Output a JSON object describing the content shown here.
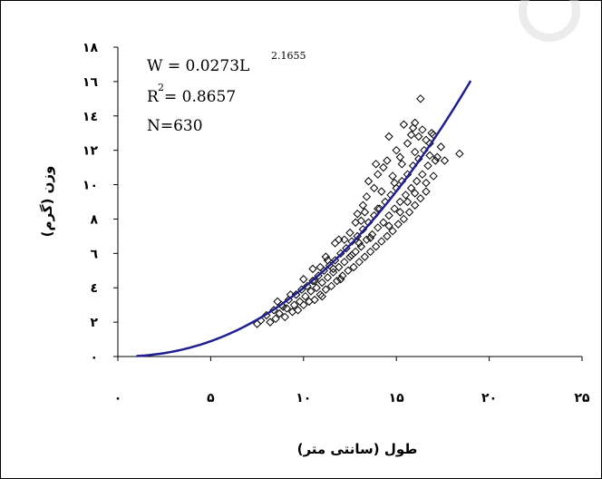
{
  "chart_data": {
    "type": "scatter",
    "xlabel": "طول (سانتی متر)",
    "ylabel": "وزن (گرم)",
    "xlim": [
      0,
      25
    ],
    "ylim": [
      0,
      18
    ],
    "x_ticks": [
      "۰",
      "۵",
      "۱۰",
      "۱۵",
      "۲۰",
      "۲۵"
    ],
    "y_ticks": [
      "۰",
      "۲",
      "٤",
      "٦",
      "۸",
      "۱۰",
      "۱۲",
      "۱٤",
      "۱٦",
      "۱۸"
    ],
    "annotation": {
      "equation_base": "W = 0.0273L",
      "equation_exponent": "2.1655",
      "r2_base": "R",
      "r2_exponent": "2",
      "r2_value": " = 0.8657",
      "n": "N=630"
    },
    "trendline": {
      "type": "power",
      "a": 0.0273,
      "b": 2.1655,
      "x_range": [
        1,
        19
      ],
      "color": "#1f1f8f"
    },
    "marker": "diamond",
    "marker_color": "#000000",
    "points": [
      [
        7.5,
        1.9
      ],
      [
        7.7,
        2.1
      ],
      [
        8.0,
        2.4
      ],
      [
        8.2,
        2.0
      ],
      [
        8.4,
        2.7
      ],
      [
        8.5,
        2.2
      ],
      [
        8.7,
        2.5
      ],
      [
        8.8,
        3.0
      ],
      [
        9.0,
        2.3
      ],
      [
        9.1,
        2.8
      ],
      [
        9.2,
        3.3
      ],
      [
        9.4,
        2.6
      ],
      [
        9.5,
        3.0
      ],
      [
        9.6,
        3.6
      ],
      [
        9.7,
        2.7
      ],
      [
        9.8,
        3.2
      ],
      [
        9.9,
        3.9
      ],
      [
        10.0,
        3.0
      ],
      [
        10.1,
        3.5
      ],
      [
        10.2,
        4.1
      ],
      [
        10.3,
        3.2
      ],
      [
        10.4,
        3.8
      ],
      [
        10.5,
        4.4
      ],
      [
        10.6,
        3.3
      ],
      [
        10.7,
        4.0
      ],
      [
        10.8,
        4.7
      ],
      [
        10.9,
        3.6
      ],
      [
        11.0,
        4.3
      ],
      [
        11.1,
        5.0
      ],
      [
        11.2,
        3.9
      ],
      [
        11.3,
        4.6
      ],
      [
        11.4,
        5.3
      ],
      [
        11.5,
        4.1
      ],
      [
        11.6,
        4.9
      ],
      [
        11.7,
        5.6
      ],
      [
        11.8,
        4.4
      ],
      [
        11.9,
        5.2
      ],
      [
        12.0,
        6.0
      ],
      [
        12.1,
        4.7
      ],
      [
        12.2,
        5.5
      ],
      [
        12.3,
        6.3
      ],
      [
        12.4,
        5.0
      ],
      [
        12.5,
        5.8
      ],
      [
        12.6,
        6.7
      ],
      [
        12.7,
        5.2
      ],
      [
        12.8,
        6.1
      ],
      [
        12.9,
        7.0
      ],
      [
        13.0,
        5.5
      ],
      [
        13.1,
        6.4
      ],
      [
        13.2,
        7.4
      ],
      [
        13.3,
        5.8
      ],
      [
        13.4,
        6.8
      ],
      [
        13.5,
        7.8
      ],
      [
        13.6,
        6.1
      ],
      [
        13.7,
        7.1
      ],
      [
        13.8,
        8.2
      ],
      [
        13.9,
        6.4
      ],
      [
        14.0,
        7.5
      ],
      [
        14.1,
        8.6
      ],
      [
        14.2,
        6.7
      ],
      [
        14.3,
        7.8
      ],
      [
        14.4,
        9.0
      ],
      [
        14.5,
        7.0
      ],
      [
        14.6,
        8.2
      ],
      [
        14.7,
        9.4
      ],
      [
        14.8,
        7.3
      ],
      [
        14.9,
        8.6
      ],
      [
        15.0,
        9.8
      ],
      [
        15.1,
        7.7
      ],
      [
        15.2,
        9.0
      ],
      [
        15.3,
        10.2
      ],
      [
        15.4,
        8.0
      ],
      [
        15.5,
        9.4
      ],
      [
        15.6,
        10.6
      ],
      [
        15.7,
        8.4
      ],
      [
        15.8,
        9.8
      ],
      [
        15.9,
        11.1
      ],
      [
        16.0,
        8.8
      ],
      [
        16.1,
        10.2
      ],
      [
        16.2,
        11.5
      ],
      [
        16.3,
        9.2
      ],
      [
        16.4,
        10.6
      ],
      [
        16.5,
        12.0
      ],
      [
        16.6,
        9.6
      ],
      [
        16.7,
        11.1
      ],
      [
        16.8,
        12.4
      ],
      [
        17.0,
        10.5
      ],
      [
        17.2,
        11.6
      ],
      [
        17.4,
        12.2
      ],
      [
        17.6,
        11.4
      ],
      [
        18.4,
        11.8
      ],
      [
        16.2,
        12.8
      ],
      [
        16.4,
        13.2
      ],
      [
        15.2,
        11.6
      ],
      [
        13.2,
        8.8
      ],
      [
        13.0,
        6.6
      ],
      [
        12.0,
        4.5
      ],
      [
        11.0,
        3.5
      ],
      [
        12.5,
        7.2
      ],
      [
        14.3,
        11.0
      ],
      [
        15.6,
        12.4
      ],
      [
        15.9,
        13.3
      ],
      [
        16.9,
        13.0
      ],
      [
        16.0,
        13.6
      ],
      [
        14.8,
        10.5
      ],
      [
        13.8,
        9.8
      ],
      [
        16.3,
        15.0
      ],
      [
        15.4,
        13.5
      ],
      [
        14.6,
        12.8
      ],
      [
        13.5,
        10.2
      ],
      [
        11.2,
        5.8
      ],
      [
        10.0,
        4.5
      ],
      [
        9.3,
        3.6
      ],
      [
        8.6,
        3.2
      ],
      [
        11.9,
        6.8
      ],
      [
        12.8,
        7.8
      ],
      [
        14.2,
        9.6
      ],
      [
        15.3,
        11.2
      ],
      [
        16.0,
        11.9
      ],
      [
        16.6,
        12.6
      ],
      [
        17.0,
        12.9
      ],
      [
        13.4,
        9.3
      ],
      [
        14.0,
        10.6
      ],
      [
        14.5,
        11.4
      ],
      [
        15.0,
        12.0
      ],
      [
        15.8,
        12.9
      ],
      [
        10.5,
        5.1
      ],
      [
        11.3,
        5.6
      ],
      [
        12.2,
        6.8
      ],
      [
        13.1,
        7.9
      ],
      [
        15.2,
        8.4
      ],
      [
        16.0,
        9.5
      ],
      [
        15.6,
        9.0
      ],
      [
        14.6,
        7.6
      ],
      [
        13.6,
        6.9
      ],
      [
        12.6,
        5.9
      ],
      [
        11.6,
        5.1
      ],
      [
        10.6,
        4.4
      ],
      [
        9.6,
        3.6
      ],
      [
        8.9,
        2.9
      ],
      [
        16.6,
        10.1
      ],
      [
        17.1,
        11.4
      ],
      [
        16.8,
        11.7
      ],
      [
        14.0,
        8.6
      ],
      [
        14.9,
        10.1
      ],
      [
        12.9,
        8.3
      ],
      [
        11.7,
        6.6
      ],
      [
        10.9,
        5.2
      ],
      [
        13.9,
        11.2
      ],
      [
        13.3,
        8.4
      ]
    ]
  }
}
